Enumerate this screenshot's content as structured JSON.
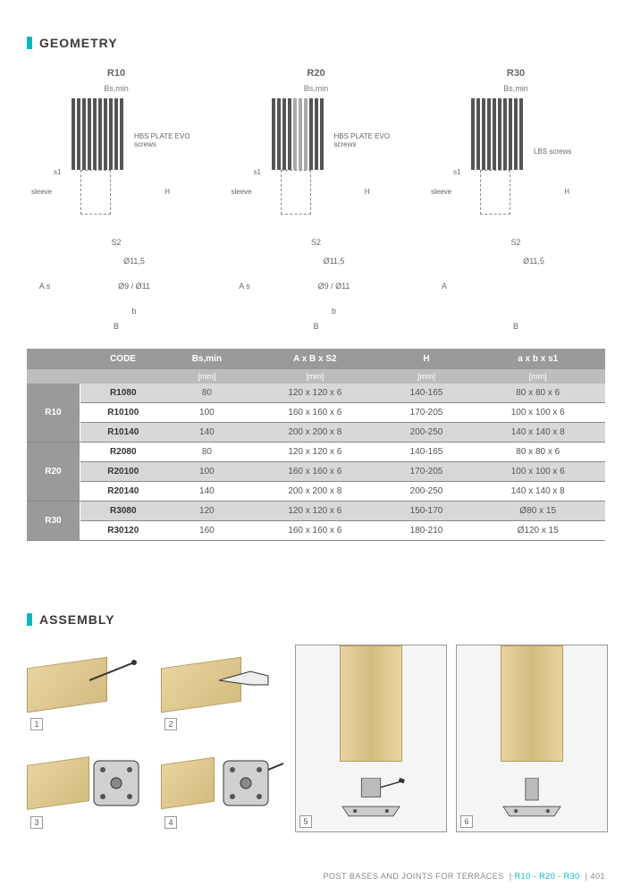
{
  "sections": {
    "geometry": "GEOMETRY",
    "assembly": "ASSEMBLY"
  },
  "accent_color": "#00b8c4",
  "diagrams": [
    {
      "title": "R10",
      "sub": "Bs,min",
      "screw": "HBS PLATE EVO screws",
      "sleeve": "sleeve",
      "s1": "s1",
      "H": "H",
      "S2": "S2",
      "hole": "Ø11,5",
      "A": "A s",
      "dia": "Ø9 / Ø11",
      "b": "b",
      "B": "B"
    },
    {
      "title": "R20",
      "sub": "Bs,min",
      "screw": "HBS PLATE EVO screws",
      "sleeve": "sleeve",
      "s1": "s1",
      "H": "H",
      "S2": "S2",
      "hole": "Ø11,5",
      "A": "A s",
      "dia": "Ø9 / Ø11",
      "b": "b",
      "B": "B"
    },
    {
      "title": "R30",
      "sub": "Bs,min",
      "screw": "LBS screws",
      "sleeve": "sleeve",
      "s1": "s1",
      "H": "H",
      "S2": "S2",
      "hole": "Ø11,5",
      "A": "A",
      "dia": "",
      "b": "",
      "B": "B"
    }
  ],
  "table": {
    "headers": [
      "",
      "CODE",
      "Bs,min",
      "A x B x S2",
      "H",
      "a x b x s1"
    ],
    "units": [
      "",
      "",
      "[mm]",
      "[mm]",
      "[mm]",
      "[mm]"
    ],
    "groups": [
      {
        "label": "R10",
        "rows": [
          {
            "code": "R1080",
            "b": "80",
            "abs2": "120 x 120 x 6",
            "h": "140-165",
            "abs1": "80 x 80 x 6",
            "striped": true
          },
          {
            "code": "R10100",
            "b": "100",
            "abs2": "160 x 160 x 6",
            "h": "170-205",
            "abs1": "100 x 100 x 6",
            "striped": false
          },
          {
            "code": "R10140",
            "b": "140",
            "abs2": "200 x 200 x 8",
            "h": "200-250",
            "abs1": "140 x 140 x 8",
            "striped": true
          }
        ]
      },
      {
        "label": "R20",
        "rows": [
          {
            "code": "R2080",
            "b": "80",
            "abs2": "120 x 120 x 6",
            "h": "140-165",
            "abs1": "80 x 80 x 6",
            "striped": false
          },
          {
            "code": "R20100",
            "b": "100",
            "abs2": "160 x 160 x 6",
            "h": "170-205",
            "abs1": "100 x 100 x 6",
            "striped": true
          },
          {
            "code": "R20140",
            "b": "140",
            "abs2": "200 x 200 x 8",
            "h": "200-250",
            "abs1": "140 x 140 x 8",
            "striped": false
          }
        ]
      },
      {
        "label": "R30",
        "rows": [
          {
            "code": "R3080",
            "b": "120",
            "abs2": "120 x 120 x 6",
            "h": "150-170",
            "abs1": "Ø80 x 15",
            "striped": true
          },
          {
            "code": "R30120",
            "b": "160",
            "abs2": "160 x 160 x 6",
            "h": "180-210",
            "abs1": "Ø120 x 15",
            "striped": false
          }
        ]
      }
    ]
  },
  "assembly_steps": [
    "1",
    "2",
    "3",
    "4",
    "5",
    "6"
  ],
  "footer": {
    "left": "POST BASES AND JOINTS FOR TERRACES",
    "mid": "R10 - R20 - R30",
    "page": "401"
  }
}
